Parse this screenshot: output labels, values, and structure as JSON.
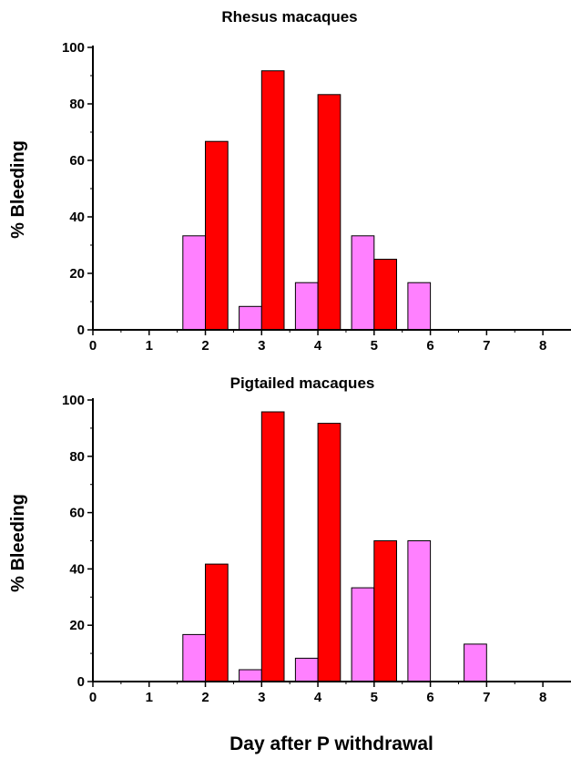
{
  "chart_data": [
    {
      "type": "bar",
      "title": "Rhesus macaques",
      "xlabel": "",
      "ylabel": "% Bleeding",
      "xlim": [
        0,
        8.5
      ],
      "ylim": [
        0,
        100
      ],
      "xticks": [
        "0",
        "1",
        "2",
        "3",
        "4",
        "5",
        "6",
        "7",
        "8"
      ],
      "yticks": [
        "0",
        "20",
        "40",
        "60",
        "80",
        "100"
      ],
      "grid": false,
      "categories": [
        2,
        3,
        4,
        5,
        6,
        7
      ],
      "series": [
        {
          "color": "#ff80ff",
          "values": [
            33.3,
            8.3,
            16.7,
            33.3,
            16.7,
            0
          ]
        },
        {
          "color": "#ff0000",
          "values": [
            66.7,
            91.7,
            83.3,
            25,
            0,
            0
          ]
        }
      ]
    },
    {
      "type": "bar",
      "title": "Pigtailed macaques",
      "xlabel": "Day after P withdrawal",
      "ylabel": "% Bleeding",
      "xlim": [
        0,
        8.5
      ],
      "ylim": [
        0,
        100
      ],
      "xticks": [
        "0",
        "1",
        "2",
        "3",
        "4",
        "5",
        "6",
        "7",
        "8"
      ],
      "yticks": [
        "0",
        "20",
        "40",
        "60",
        "80",
        "100"
      ],
      "grid": false,
      "categories": [
        2,
        3,
        4,
        5,
        6,
        7
      ],
      "series": [
        {
          "color": "#ff80ff",
          "values": [
            16.7,
            4.2,
            8.3,
            33.3,
            50,
            13.3
          ]
        },
        {
          "color": "#ff0000",
          "values": [
            41.7,
            95.8,
            91.7,
            50,
            0,
            0
          ]
        }
      ]
    }
  ]
}
